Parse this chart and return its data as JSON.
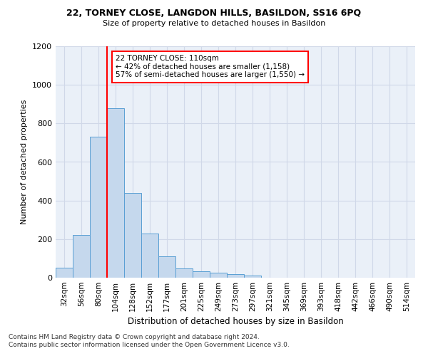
{
  "title1": "22, TORNEY CLOSE, LANGDON HILLS, BASILDON, SS16 6PQ",
  "title2": "Size of property relative to detached houses in Basildon",
  "xlabel": "Distribution of detached houses by size in Basildon",
  "ylabel": "Number of detached properties",
  "bin_labels": [
    "32sqm",
    "56sqm",
    "80sqm",
    "104sqm",
    "128sqm",
    "152sqm",
    "177sqm",
    "201sqm",
    "225sqm",
    "249sqm",
    "273sqm",
    "297sqm",
    "321sqm",
    "345sqm",
    "369sqm",
    "393sqm",
    "418sqm",
    "442sqm",
    "466sqm",
    "490sqm",
    "514sqm"
  ],
  "bar_heights": [
    50,
    220,
    730,
    880,
    440,
    230,
    110,
    47,
    35,
    25,
    20,
    10,
    0,
    0,
    0,
    0,
    0,
    0,
    0,
    0,
    0
  ],
  "bar_color": "#c5d8ed",
  "bar_edge_color": "#5a9fd4",
  "grid_color": "#d0d8e8",
  "vline_color": "red",
  "annotation_text": "22 TORNEY CLOSE: 110sqm\n← 42% of detached houses are smaller (1,158)\n57% of semi-detached houses are larger (1,550) →",
  "annotation_box_color": "white",
  "annotation_box_edge": "red",
  "footnote1": "Contains HM Land Registry data © Crown copyright and database right 2024.",
  "footnote2": "Contains public sector information licensed under the Open Government Licence v3.0.",
  "ylim": [
    0,
    1200
  ],
  "yticks": [
    0,
    200,
    400,
    600,
    800,
    1000,
    1200
  ],
  "bg_color": "#eaf0f8"
}
